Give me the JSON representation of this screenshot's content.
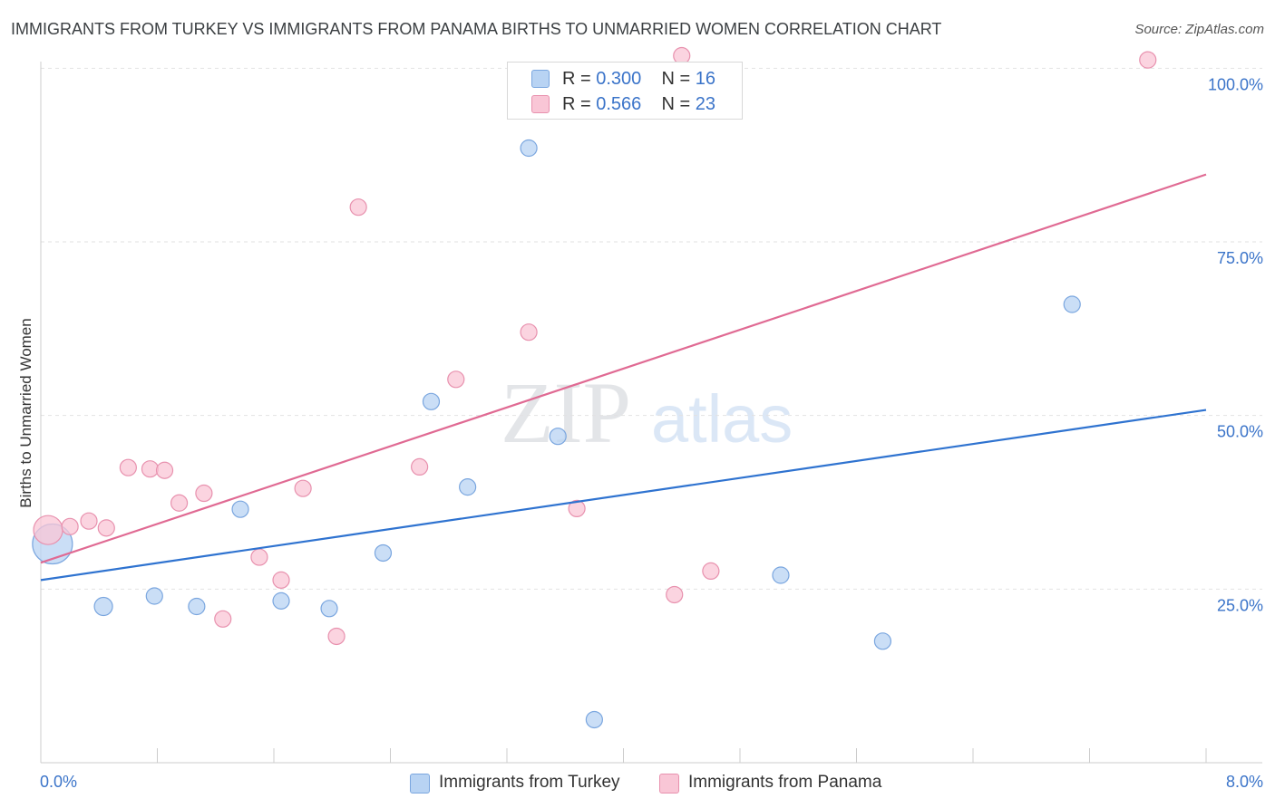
{
  "title": "IMMIGRANTS FROM TURKEY VS IMMIGRANTS FROM PANAMA BIRTHS TO UNMARRIED WOMEN CORRELATION CHART",
  "source": "Source: ZipAtlas.com",
  "watermark": {
    "zip": "ZIP",
    "atlas": "atlas"
  },
  "legend": {
    "rows": [
      {
        "r_label": "R =",
        "r_value": "0.300",
        "n_label": "N =",
        "n_value": "16",
        "color": "#b8d3f3",
        "border": "#7aa6df"
      },
      {
        "r_label": "R =",
        "r_value": "0.566",
        "n_label": "N =",
        "n_value": "23",
        "color": "#f9c6d6",
        "border": "#e891ae"
      }
    ]
  },
  "chart_data": {
    "type": "scatter",
    "title": "IMMIGRANTS FROM TURKEY VS IMMIGRANTS FROM PANAMA BIRTHS TO UNMARRIED WOMEN CORRELATION CHART",
    "xlabel": "",
    "ylabel": "Births to Unmarried Women",
    "xlim": [
      0,
      8
    ],
    "ylim": [
      0,
      102
    ],
    "x_tick_labels": [
      "0.0%",
      "8.0%"
    ],
    "y_ticks": [
      25,
      50,
      75,
      100
    ],
    "y_tick_labels": [
      "25.0%",
      "50.0%",
      "75.0%",
      "100.0%"
    ],
    "grid": true,
    "legend_position": "top-center",
    "series": [
      {
        "name": "Immigrants from Turkey",
        "color": "#b8d3f3",
        "stroke": "#7aa6df",
        "line_color": "#2f73d0",
        "points": [
          [
            0.08,
            31.5,
            22
          ],
          [
            0.43,
            22.5,
            10
          ],
          [
            0.78,
            24,
            9
          ],
          [
            1.07,
            22.5,
            9
          ],
          [
            1.37,
            36.5,
            9
          ],
          [
            1.65,
            23.3,
            9
          ],
          [
            1.98,
            22.2,
            9
          ],
          [
            2.35,
            30.2,
            9
          ],
          [
            2.68,
            52,
            9
          ],
          [
            2.93,
            39.7,
            9
          ],
          [
            3.35,
            88.5,
            9
          ],
          [
            3.55,
            47,
            9
          ],
          [
            3.8,
            6.2,
            9
          ],
          [
            5.08,
            27,
            9
          ],
          [
            5.78,
            17.5,
            9
          ],
          [
            7.08,
            66,
            9
          ]
        ],
        "trend": [
          [
            0,
            26.3
          ],
          [
            8,
            50.8
          ]
        ]
      },
      {
        "name": "Immigrants from Panama",
        "color": "#f9c6d6",
        "stroke": "#e891ae",
        "line_color": "#e06a93",
        "points": [
          [
            0.05,
            33.5,
            16
          ],
          [
            0.2,
            34,
            9
          ],
          [
            0.33,
            34.8,
            9
          ],
          [
            0.45,
            33.8,
            9
          ],
          [
            0.6,
            42.5,
            9
          ],
          [
            0.75,
            42.3,
            9
          ],
          [
            0.85,
            42.1,
            9
          ],
          [
            0.95,
            37.4,
            9
          ],
          [
            1.12,
            38.8,
            9
          ],
          [
            1.25,
            20.7,
            9
          ],
          [
            1.5,
            29.6,
            9
          ],
          [
            1.65,
            26.3,
            9
          ],
          [
            1.8,
            39.5,
            9
          ],
          [
            2.03,
            18.2,
            9
          ],
          [
            2.18,
            80,
            9
          ],
          [
            2.6,
            42.6,
            9
          ],
          [
            2.85,
            55.2,
            9
          ],
          [
            3.35,
            62,
            9
          ],
          [
            3.68,
            36.6,
            9
          ],
          [
            4.35,
            24.2,
            9
          ],
          [
            4.4,
            101.8,
            9
          ],
          [
            4.6,
            27.6,
            9
          ],
          [
            7.6,
            101.2,
            9
          ]
        ],
        "trend": [
          [
            0,
            28.8
          ],
          [
            8,
            84.7
          ]
        ]
      }
    ]
  }
}
